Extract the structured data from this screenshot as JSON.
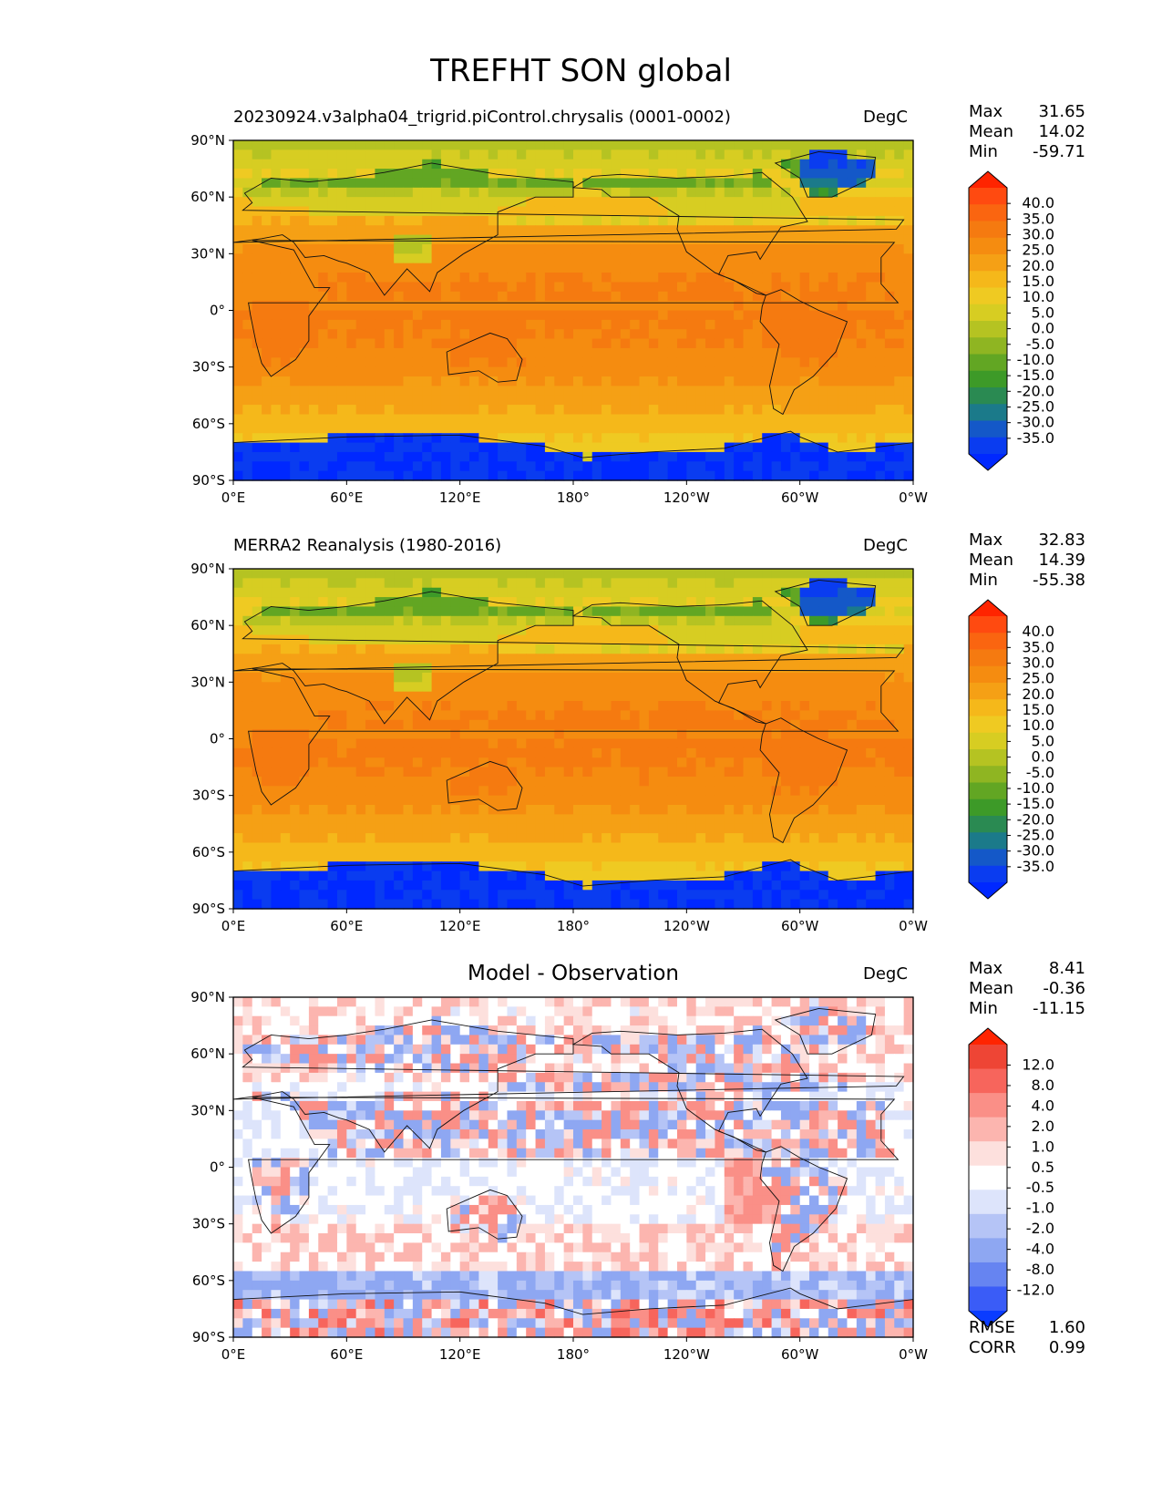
{
  "title": "TREFHT SON global",
  "lat_labels": [
    "90°N",
    "60°N",
    "30°N",
    "0°",
    "30°S",
    "60°S",
    "90°S"
  ],
  "lon_labels": [
    "0°E",
    "60°E",
    "120°E",
    "180°",
    "120°W",
    "60°W",
    "0°W"
  ],
  "temperature_levels": [
    "40.0",
    "35.0",
    "30.0",
    "25.0",
    "20.0",
    "15.0",
    "10.0",
    "5.0",
    "0.0",
    "-5.0",
    "-10.0",
    "-15.0",
    "-20.0",
    "-25.0",
    "-30.0",
    "-35.0"
  ],
  "temperature_colors": [
    "#ff2400",
    "#ff4a10",
    "#fa6510",
    "#f57a10",
    "#f58c10",
    "#f5a015",
    "#f5b81a",
    "#efca22",
    "#d7cd22",
    "#b5c322",
    "#8fb522",
    "#62a623",
    "#3d9a28",
    "#2a8a52",
    "#1b7a8a",
    "#1458c8",
    "#0a3cf0",
    "#0028ff"
  ],
  "difference_levels": [
    "12.0",
    "8.0",
    "4.0",
    "2.0",
    "1.0",
    "0.5",
    "-0.5",
    "-1.0",
    "-2.0",
    "-4.0",
    "-8.0",
    "-12.0"
  ],
  "difference_colors": [
    "#ff2400",
    "#ee4535",
    "#f7655c",
    "#fa8f87",
    "#fcb5af",
    "#fde0dd",
    "#ffffff",
    "#dde4fb",
    "#b5c4f6",
    "#8ea7f2",
    "#6684f1",
    "#3a5cf7",
    "#0a3cff"
  ],
  "panels": [
    {
      "title": "20230924.v3alpha04_trigrid.piControl.chrysalis (0001-0002)",
      "units": "DegC",
      "stats": [
        {
          "label": "Max",
          "value": "31.65"
        },
        {
          "label": "Mean",
          "value": "14.02"
        },
        {
          "label": "Min",
          "value": "-59.71"
        }
      ]
    },
    {
      "title": "MERRA2 Reanalysis (1980-2016)",
      "units": "DegC",
      "stats": [
        {
          "label": "Max",
          "value": "32.83"
        },
        {
          "label": "Mean",
          "value": "14.39"
        },
        {
          "label": "Min",
          "value": "-55.38"
        }
      ]
    },
    {
      "title": "Model - Observation",
      "units": "DegC",
      "stats": [
        {
          "label": "Max",
          "value": "8.41"
        },
        {
          "label": "Mean",
          "value": "-0.36"
        },
        {
          "label": "Min",
          "value": "-11.15"
        }
      ],
      "metrics": [
        {
          "label": "RMSE",
          "value": "1.60"
        },
        {
          "label": "CORR",
          "value": "0.99"
        }
      ]
    }
  ]
}
